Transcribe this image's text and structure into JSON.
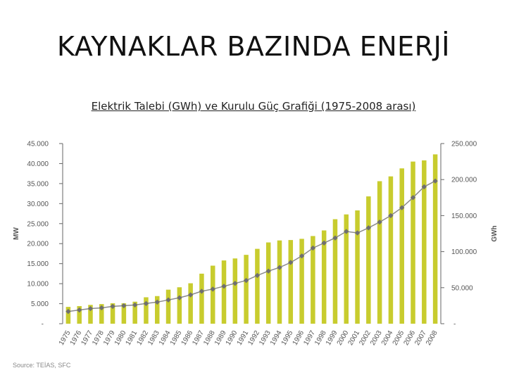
{
  "title": "KAYNAKLAR BAZINDA ENERJİ",
  "subtitle": "Elektrik Talebi (GWh) ve Kurulu Güç Grafiği (1975-2008 arası)",
  "source": "Source: TEİAS, SFC",
  "colors": {
    "bar": "#c8cc2e",
    "line": "#8a8a8a",
    "marker": "#6f6f6f",
    "axis": "#666666"
  },
  "chart_data": {
    "type": "bar",
    "title": "",
    "xlabel": "",
    "ylabel": "MW",
    "y2label": "GWh",
    "ylim": [
      0,
      45000
    ],
    "y2lim": [
      0,
      250000
    ],
    "left_ticks": [
      "-",
      "5.000",
      "10.000",
      "15.000",
      "20.000",
      "25.000",
      "30.000",
      "35.000",
      "40.000",
      "45.000"
    ],
    "right_ticks": [
      "-",
      "50.000",
      "100.000",
      "150.000",
      "200.000",
      "250.000"
    ],
    "categories": [
      "1975",
      "1976",
      "1977",
      "1978",
      "1979",
      "1980",
      "1981",
      "1982",
      "1983",
      "1984",
      "1985",
      "1986",
      "1987",
      "1988",
      "1989",
      "1990",
      "1991",
      "1992",
      "1993",
      "1994",
      "1995",
      "1996",
      "1997",
      "1998",
      "1999",
      "2000",
      "2001",
      "2002",
      "2003",
      "2004",
      "2005",
      "2006",
      "2007",
      "2008"
    ],
    "series": [
      {
        "type": "bar",
        "axis": "left",
        "values": [
          4200,
          4400,
          4700,
          4900,
          5100,
          5100,
          5500,
          6600,
          6900,
          8500,
          9100,
          10100,
          12500,
          14500,
          15800,
          16300,
          17200,
          18700,
          20300,
          20800,
          20900,
          21200,
          21900,
          23300,
          26100,
          27300,
          28300,
          31800,
          35600,
          36800,
          38800,
          40500,
          40800,
          42300
        ]
      },
      {
        "type": "line",
        "axis": "right",
        "values": [
          17000,
          19000,
          21000,
          22000,
          24000,
          25000,
          26000,
          28000,
          30000,
          33000,
          36000,
          40000,
          45000,
          48000,
          52000,
          56000,
          60000,
          67000,
          73000,
          78000,
          85000,
          94000,
          105000,
          112000,
          119000,
          128000,
          126000,
          133000,
          141000,
          150000,
          161000,
          175000,
          190000,
          198000
        ]
      }
    ]
  }
}
